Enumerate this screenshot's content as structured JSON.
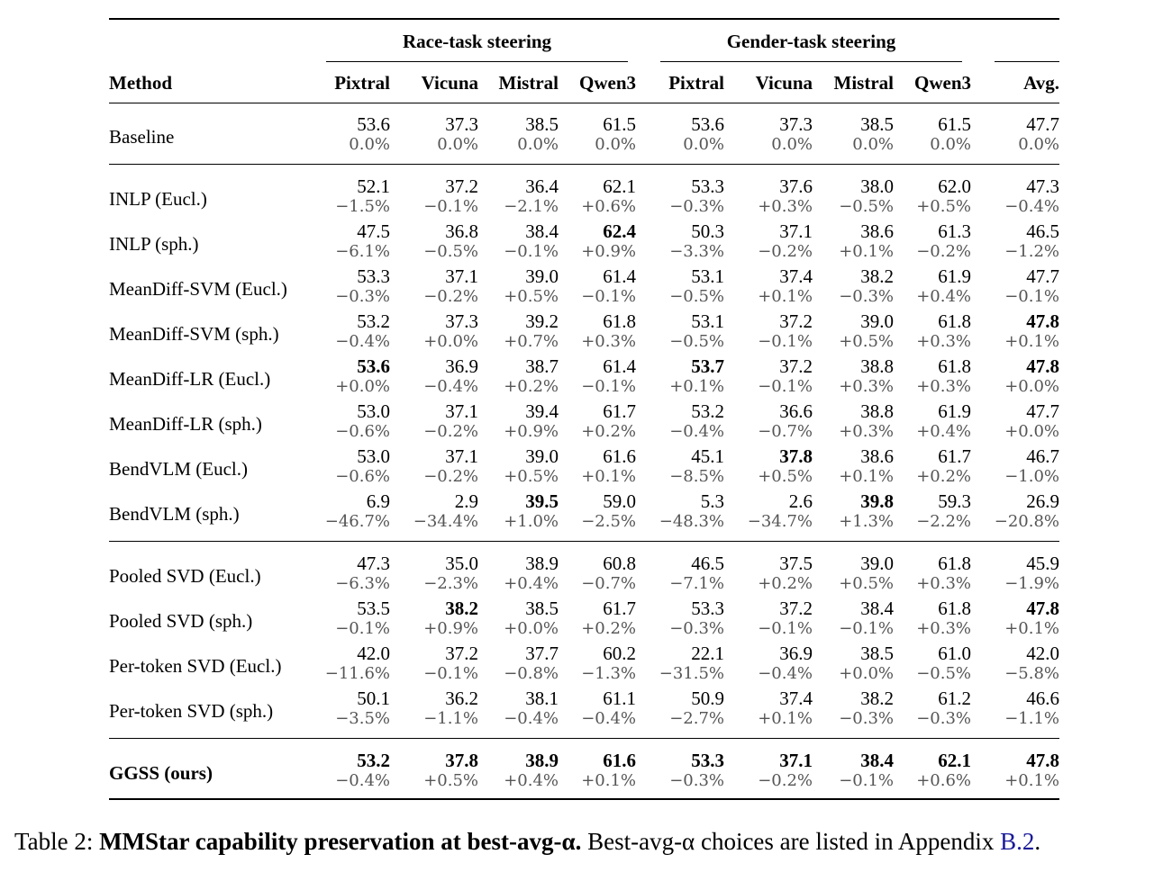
{
  "table": {
    "group_headers": [
      "Race-task steering",
      "Gender-task steering"
    ],
    "columns": [
      "Method",
      "Pixtral",
      "Vicuna",
      "Mistral",
      "Qwen3",
      "Pixtral",
      "Vicuna",
      "Mistral",
      "Qwen3",
      "Avg."
    ],
    "rows": [
      {
        "method": "Baseline",
        "vals": [
          "53.6",
          "37.3",
          "38.5",
          "61.5",
          "53.6",
          "37.3",
          "38.5",
          "61.5",
          "47.7"
        ],
        "pcts": [
          "0.0%",
          "0.0%",
          "0.0%",
          "0.0%",
          "0.0%",
          "0.0%",
          "0.0%",
          "0.0%",
          "0.0%"
        ],
        "bold": []
      },
      {
        "method": "INLP (Eucl.)",
        "vals": [
          "52.1",
          "37.2",
          "36.4",
          "62.1",
          "53.3",
          "37.6",
          "38.0",
          "62.0",
          "47.3"
        ],
        "pcts": [
          "−1.5%",
          "−0.1%",
          "−2.1%",
          "+0.6%",
          "−0.3%",
          "+0.3%",
          "−0.5%",
          "+0.5%",
          "−0.4%"
        ],
        "bold": []
      },
      {
        "method": "INLP (sph.)",
        "vals": [
          "47.5",
          "36.8",
          "38.4",
          "62.4",
          "50.3",
          "37.1",
          "38.6",
          "61.3",
          "46.5"
        ],
        "pcts": [
          "−6.1%",
          "−0.5%",
          "−0.1%",
          "+0.9%",
          "−3.3%",
          "−0.2%",
          "+0.1%",
          "−0.2%",
          "−1.2%"
        ],
        "bold": [
          3
        ]
      },
      {
        "method": "MeanDiff-SVM (Eucl.)",
        "vals": [
          "53.3",
          "37.1",
          "39.0",
          "61.4",
          "53.1",
          "37.4",
          "38.2",
          "61.9",
          "47.7"
        ],
        "pcts": [
          "−0.3%",
          "−0.2%",
          "+0.5%",
          "−0.1%",
          "−0.5%",
          "+0.1%",
          "−0.3%",
          "+0.4%",
          "−0.1%"
        ],
        "bold": []
      },
      {
        "method": "MeanDiff-SVM (sph.)",
        "vals": [
          "53.2",
          "37.3",
          "39.2",
          "61.8",
          "53.1",
          "37.2",
          "39.0",
          "61.8",
          "47.8"
        ],
        "pcts": [
          "−0.4%",
          "+0.0%",
          "+0.7%",
          "+0.3%",
          "−0.5%",
          "−0.1%",
          "+0.5%",
          "+0.3%",
          "+0.1%"
        ],
        "bold": [
          8
        ]
      },
      {
        "method": "MeanDiff-LR (Eucl.)",
        "vals": [
          "53.6",
          "36.9",
          "38.7",
          "61.4",
          "53.7",
          "37.2",
          "38.8",
          "61.8",
          "47.8"
        ],
        "pcts": [
          "+0.0%",
          "−0.4%",
          "+0.2%",
          "−0.1%",
          "+0.1%",
          "−0.1%",
          "+0.3%",
          "+0.3%",
          "+0.0%"
        ],
        "bold": [
          0,
          4,
          8
        ]
      },
      {
        "method": "MeanDiff-LR (sph.)",
        "vals": [
          "53.0",
          "37.1",
          "39.4",
          "61.7",
          "53.2",
          "36.6",
          "38.8",
          "61.9",
          "47.7"
        ],
        "pcts": [
          "−0.6%",
          "−0.2%",
          "+0.9%",
          "+0.2%",
          "−0.4%",
          "−0.7%",
          "+0.3%",
          "+0.4%",
          "+0.0%"
        ],
        "bold": []
      },
      {
        "method": "BendVLM (Eucl.)",
        "vals": [
          "53.0",
          "37.1",
          "39.0",
          "61.6",
          "45.1",
          "37.8",
          "38.6",
          "61.7",
          "46.7"
        ],
        "pcts": [
          "−0.6%",
          "−0.2%",
          "+0.5%",
          "+0.1%",
          "−8.5%",
          "+0.5%",
          "+0.1%",
          "+0.2%",
          "−1.0%"
        ],
        "bold": [
          5
        ]
      },
      {
        "method": "BendVLM (sph.)",
        "vals": [
          "6.9",
          "2.9",
          "39.5",
          "59.0",
          "5.3",
          "2.6",
          "39.8",
          "59.3",
          "26.9"
        ],
        "pcts": [
          "−46.7%",
          "−34.4%",
          "+1.0%",
          "−2.5%",
          "−48.3%",
          "−34.7%",
          "+1.3%",
          "−2.2%",
          "−20.8%"
        ],
        "bold": [
          2,
          6
        ]
      },
      {
        "method": "Pooled SVD (Eucl.)",
        "vals": [
          "47.3",
          "35.0",
          "38.9",
          "60.8",
          "46.5",
          "37.5",
          "39.0",
          "61.8",
          "45.9"
        ],
        "pcts": [
          "−6.3%",
          "−2.3%",
          "+0.4%",
          "−0.7%",
          "−7.1%",
          "+0.2%",
          "+0.5%",
          "+0.3%",
          "−1.9%"
        ],
        "bold": []
      },
      {
        "method": "Pooled SVD (sph.)",
        "vals": [
          "53.5",
          "38.2",
          "38.5",
          "61.7",
          "53.3",
          "37.2",
          "38.4",
          "61.8",
          "47.8"
        ],
        "pcts": [
          "−0.1%",
          "+0.9%",
          "+0.0%",
          "+0.2%",
          "−0.3%",
          "−0.1%",
          "−0.1%",
          "+0.3%",
          "+0.1%"
        ],
        "bold": [
          1,
          8
        ]
      },
      {
        "method": "Per-token SVD (Eucl.)",
        "vals": [
          "42.0",
          "37.2",
          "37.7",
          "60.2",
          "22.1",
          "36.9",
          "38.5",
          "61.0",
          "42.0"
        ],
        "pcts": [
          "−11.6%",
          "−0.1%",
          "−0.8%",
          "−1.3%",
          "−31.5%",
          "−0.4%",
          "+0.0%",
          "−0.5%",
          "−5.8%"
        ],
        "bold": []
      },
      {
        "method": "Per-token SVD (sph.)",
        "vals": [
          "50.1",
          "36.2",
          "38.1",
          "61.1",
          "50.9",
          "37.4",
          "38.2",
          "61.2",
          "46.6"
        ],
        "pcts": [
          "−3.5%",
          "−1.1%",
          "−0.4%",
          "−0.4%",
          "−2.7%",
          "+0.1%",
          "−0.3%",
          "−0.3%",
          "−1.1%"
        ],
        "bold": []
      },
      {
        "method": "GGSS (ours)",
        "vals": [
          "53.2",
          "37.8",
          "38.9",
          "61.6",
          "53.3",
          "37.1",
          "38.4",
          "62.1",
          "47.8"
        ],
        "pcts": [
          "−0.4%",
          "+0.5%",
          "+0.4%",
          "+0.1%",
          "−0.3%",
          "−0.2%",
          "−0.1%",
          "+0.6%",
          "+0.1%"
        ],
        "bold": [
          0,
          1,
          2,
          3,
          4,
          5,
          6,
          7,
          8
        ],
        "method_bold": true
      }
    ]
  },
  "caption": {
    "label": "Table 2: ",
    "bold_title": "MMStar capability preservation at best-avg-α.",
    "text": " Best-avg-α choices are listed in Appendix ",
    "ref": "B.2",
    "end": "."
  }
}
